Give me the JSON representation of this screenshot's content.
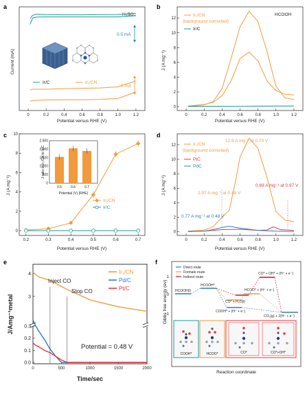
{
  "colors": {
    "orange": "#f29a3c",
    "teal": "#1a9a9a",
    "red": "#e8353a",
    "blue": "#2e7bc4",
    "darkred": "#c8102e"
  },
  "panels": {
    "a": {
      "letter": "a",
      "label": "H₂SO₄",
      "xlabel": "Potential versus RHE (V)",
      "ylabel": "Current (mA)",
      "scale_top": "0.5 mA",
      "scale_bottom": "1 mA",
      "legend_ir": "Ir/C",
      "legend_ircn": "Ir₁/CN",
      "xticks": [
        "0",
        "0.2",
        "0.4",
        "0.6",
        "0.8",
        "1.0",
        "1.2"
      ]
    },
    "b": {
      "letter": "b",
      "label": "HCOOH",
      "xlabel": "Potential versus RHE (V)",
      "ylabel": "J (A mg⁻¹)",
      "legend_ircn": "Ir₁/CN",
      "legend_bg": "(background corrected)",
      "legend_ir": "Ir/C",
      "xticks": [
        "0",
        "0.2",
        "0.4",
        "0.6",
        "0.8",
        "1.0",
        "1.2"
      ],
      "yticks": [
        "0",
        "2",
        "4",
        "6",
        "8",
        "10",
        "12"
      ]
    },
    "c": {
      "letter": "c",
      "xlabel": "Potential versus RHE (V)",
      "ylabel": "J (A mg⁻¹)",
      "legend_ircn": "Ir₁/CN",
      "legend_ir": "Ir/C",
      "xticks": [
        "0.2",
        "0.3",
        "0.4",
        "0.5",
        "0.6",
        "0.7"
      ],
      "yticks": [
        "0",
        "2",
        "4",
        "6",
        "8",
        "10"
      ],
      "inset_xlabel": "Potential (V) (RHE)",
      "inset_ylabel": "J ratio of Ir₁/CN to Ir/C",
      "inset_xticks": [
        "0.5",
        "0.6",
        "0.7"
      ],
      "inset_yticks": [
        "0",
        "500",
        "1,000",
        "1,500",
        "2,000",
        "2,500"
      ]
    },
    "d": {
      "letter": "d",
      "xlabel": "Potential versus RHE (V)",
      "ylabel": "J (A mg⁻¹)",
      "legend_ircn": "Ir₁/CN",
      "legend_bg": "(background corrected)",
      "legend_pt": "PtC",
      "legend_pd": "PdC",
      "ann_peak": "12.9 A mg⁻¹ at 0.70 V",
      "ann_ir_048": "2.97 A mg⁻¹ at 0.48 V",
      "ann_pd": "0.77 A mg⁻¹ at 0.48 V",
      "ann_pt": "0.69 A mg⁻¹ at 0.97 V",
      "xticks": [
        "0",
        "0.2",
        "0.4",
        "0.6",
        "0.8",
        "1.0",
        "1.2"
      ],
      "yticks": [
        "0",
        "2",
        "4",
        "6",
        "8",
        "10",
        "12"
      ]
    },
    "e": {
      "letter": "e",
      "xlabel": "Time/sec",
      "ylabel": "J/Amg⁻¹metal",
      "inject": "Inject CO",
      "stop": "Stop CO",
      "potential": "Potential = 0.48 V",
      "legend_ircn": "Ir₁/CN",
      "legend_pd": "Pd/C",
      "legend_pt": "Pt/C",
      "xticks": [
        "0",
        "500",
        "1000",
        "1500",
        "2000"
      ],
      "yticks": [
        "0.0",
        "0.1",
        "0.2",
        "0.3",
        "3",
        "4"
      ]
    },
    "f": {
      "letter": "f",
      "xlabel": "Reaction coordinate",
      "ylabel": "Gibbs free energy (ev)",
      "legend_direct": "Direct route",
      "legend_formate": "Formate route",
      "legend_indirect": "Indirect route",
      "states": {
        "hcooh": "HCOOH(l)",
        "hcooh_star": "HCOOH*",
        "hcoo_star": "HCOO* + (H⁺ + e⁻)",
        "cooh_star": "COOH* + (H⁺ + e⁻)",
        "co_h2o": "CO* + H₂O(l)",
        "co_oh": "CO* + OH* + (H⁺ + e⁻)",
        "co2": "CO₂(g) + 2(H⁺ + e⁻)"
      },
      "yticks": [
        "1",
        "0",
        "-1"
      ],
      "insets": [
        "COOH*",
        "HCOO*",
        "CO*",
        "CO*+OH*"
      ]
    }
  },
  "chart_data": [
    {
      "type": "line",
      "panel": "a",
      "label": "H₂SO₄",
      "xlabel": "Potential versus RHE (V)",
      "ylabel": "Current (mA)",
      "xlim": [
        -0.1,
        1.3
      ],
      "series": [
        {
          "name": "Ir/C",
          "x": [
            0.02,
            0.05,
            0.1,
            0.2,
            0.4,
            0.6,
            0.8,
            1.0,
            1.2
          ],
          "y_forward": [
            0.55,
            0.75,
            0.8,
            0.78,
            0.77,
            0.77,
            0.78,
            0.79,
            0.85
          ],
          "y_reverse": [
            0.25,
            0.6,
            0.65,
            0.66,
            0.66,
            0.66,
            0.66,
            0.66,
            0.72
          ]
        },
        {
          "name": "Ir₁/CN",
          "x": [
            0.02,
            0.05,
            0.2,
            0.4,
            0.6,
            0.8,
            1.0,
            1.2
          ],
          "y_forward": [
            -3.3,
            -3.25,
            -3.25,
            -3.22,
            -3.2,
            -3.18,
            -3.12,
            -2.8
          ],
          "y_reverse": [
            -3.9,
            -3.85,
            -3.83,
            -3.82,
            -3.82,
            -3.8,
            -3.75,
            -3.4
          ]
        }
      ]
    },
    {
      "type": "line",
      "panel": "b",
      "label": "HCOOH",
      "xlabel": "Potential versus RHE (V)",
      "ylabel": "J (A mg⁻¹)",
      "xlim": [
        -0.1,
        1.3
      ],
      "ylim": [
        -0.5,
        13.5
      ],
      "series": [
        {
          "name": "Ir₁/CN",
          "x": [
            0.02,
            0.1,
            0.2,
            0.3,
            0.4,
            0.5,
            0.6,
            0.7,
            0.8,
            0.9,
            1.0,
            1.1,
            1.2
          ],
          "y_forward": [
            0.1,
            0.2,
            0.3,
            0.6,
            1.5,
            3.5,
            6.5,
            7.4,
            6.2,
            3.5,
            2.2,
            1.7,
            1.6
          ],
          "y_reverse": [
            0.05,
            0.15,
            0.25,
            0.7,
            2.5,
            6.5,
            10.8,
            12.9,
            11.5,
            7.5,
            2.8,
            1.2,
            1.0
          ]
        },
        {
          "name": "Ir/C",
          "x": [
            0.02,
            0.2,
            0.4,
            0.6,
            0.8,
            1.0,
            1.2
          ],
          "y": [
            0.05,
            0.05,
            0.05,
            0.06,
            0.08,
            0.1,
            0.1
          ]
        }
      ]
    },
    {
      "type": "line",
      "panel": "c",
      "xlabel": "Potential versus RHE (V)",
      "ylabel": "J (A mg⁻¹)",
      "xlim": [
        0.2,
        0.7
      ],
      "ylim": [
        -0.5,
        10
      ],
      "series": [
        {
          "name": "Ir₁/CN",
          "x": [
            0.2,
            0.3,
            0.4,
            0.5,
            0.6,
            0.7
          ],
          "y": [
            0.05,
            0.2,
            0.8,
            3.7,
            7.9,
            9.0
          ]
        },
        {
          "name": "Ir/C",
          "x": [
            0.2,
            0.3,
            0.4,
            0.5,
            0.6,
            0.7
          ],
          "y": [
            0.0,
            0.0,
            0.0,
            0.0,
            0.0,
            0.0
          ]
        }
      ],
      "inset": {
        "type": "bar",
        "categories": [
          "0.5",
          "0.6",
          "0.7"
        ],
        "values": [
          1550,
          2050,
          1900
        ],
        "ylim": [
          0,
          2500
        ]
      }
    },
    {
      "type": "line",
      "panel": "d",
      "xlabel": "Potential versus RHE (V)",
      "ylabel": "J (A mg⁻¹)",
      "xlim": [
        -0.1,
        1.3
      ],
      "ylim": [
        -0.5,
        13.5
      ],
      "series": [
        {
          "name": "Ir₁/CN",
          "x": [
            0.02,
            0.1,
            0.2,
            0.3,
            0.4,
            0.48,
            0.55,
            0.6,
            0.7,
            0.8,
            0.9,
            1.0,
            1.1,
            1.2
          ],
          "y": [
            0.1,
            0.15,
            0.25,
            0.7,
            2.0,
            2.97,
            7.0,
            10.3,
            12.9,
            11.5,
            7.5,
            2.8,
            1.6,
            1.4
          ]
        },
        {
          "name": "PtC",
          "x": [
            0.02,
            0.2,
            0.4,
            0.6,
            0.8,
            0.9,
            0.97,
            1.05,
            1.2
          ],
          "y": [
            0.05,
            0.1,
            0.3,
            0.35,
            0.2,
            0.25,
            0.69,
            0.3,
            0.2
          ]
        },
        {
          "name": "PdC",
          "x": [
            0.02,
            0.2,
            0.3,
            0.4,
            0.48,
            0.6,
            0.8,
            1.0,
            1.2
          ],
          "y": [
            0.05,
            0.1,
            0.3,
            0.6,
            0.77,
            0.5,
            0.2,
            0.1,
            0.05
          ]
        }
      ]
    },
    {
      "type": "line",
      "panel": "e",
      "xlabel": "Time/sec",
      "ylabel": "J/Amg⁻¹metal",
      "xlim": [
        0,
        2000
      ],
      "series": [
        {
          "name": "Ir₁/CN",
          "x": [
            0,
            100,
            300,
            600,
            1000,
            1500,
            2000
          ],
          "y": [
            4.05,
            3.85,
            3.7,
            3.3,
            2.85,
            2.55,
            2.35
          ]
        },
        {
          "name": "Pd/C",
          "x": [
            0,
            50,
            100,
            200,
            300,
            400,
            500,
            600,
            2000
          ],
          "y": [
            0.35,
            0.3,
            0.26,
            0.19,
            0.11,
            0.05,
            0.0,
            0.0,
            0.0
          ]
        },
        {
          "name": "Pt/C",
          "x": [
            0,
            50,
            100,
            200,
            300,
            400,
            500,
            600,
            2000
          ],
          "y": [
            0.16,
            0.14,
            0.13,
            0.1,
            0.08,
            0.05,
            0.02,
            0.0,
            0.0
          ]
        }
      ]
    },
    {
      "type": "diagram",
      "panel": "f",
      "xlabel": "Reaction coordinate",
      "ylabel": "Gibbs free energy (ev)",
      "ylim": [
        -1.3,
        2.0
      ]
    }
  ]
}
